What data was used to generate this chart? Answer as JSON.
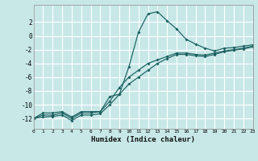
{
  "xlabel": "Humidex (Indice chaleur)",
  "xlim": [
    0,
    23
  ],
  "ylim": [
    -13.5,
    4.5
  ],
  "yticks": [
    2,
    0,
    -2,
    -4,
    -6,
    -8,
    -10,
    -12
  ],
  "xticks": [
    0,
    1,
    2,
    3,
    4,
    5,
    6,
    7,
    8,
    9,
    10,
    11,
    12,
    13,
    14,
    15,
    16,
    17,
    18,
    19,
    20,
    21,
    22,
    23
  ],
  "bg_color": "#c8e8e8",
  "line_color": "#1a6060",
  "grid_color": "#ffffff",
  "lines": [
    {
      "x": [
        0,
        1,
        2,
        3,
        4,
        5,
        6,
        7,
        8,
        9,
        10,
        11,
        12,
        13,
        14,
        15,
        16,
        17,
        18,
        19,
        20,
        21,
        22,
        23
      ],
      "y": [
        -12,
        -11.2,
        -11.2,
        -11,
        -11.8,
        -11,
        -11,
        -11,
        -8.8,
        -8.5,
        -4.5,
        0.5,
        3.2,
        3.5,
        2.2,
        1.0,
        -0.5,
        -1.2,
        -1.8,
        -2.2,
        -1.8,
        -1.7,
        -1.5,
        -1.3
      ]
    },
    {
      "x": [
        0,
        1,
        2,
        3,
        4,
        5,
        6,
        7,
        8,
        9,
        10,
        11,
        12,
        13,
        14,
        15,
        16,
        17,
        18,
        19,
        20,
        21,
        22,
        23
      ],
      "y": [
        -12,
        -11.5,
        -11.5,
        -11.2,
        -12,
        -11.2,
        -11.2,
        -11.0,
        -9.5,
        -7.5,
        -6.0,
        -5.0,
        -4.0,
        -3.5,
        -3.0,
        -2.5,
        -2.5,
        -2.7,
        -2.8,
        -2.5,
        -2.2,
        -2.0,
        -1.8,
        -1.5
      ]
    },
    {
      "x": [
        0,
        1,
        2,
        3,
        4,
        5,
        6,
        7,
        8,
        9,
        10,
        11,
        12,
        13,
        14,
        15,
        16,
        17,
        18,
        19,
        20,
        21,
        22,
        23
      ],
      "y": [
        -12,
        -11.8,
        -11.7,
        -11.5,
        -12.3,
        -11.5,
        -11.5,
        -11.3,
        -10.0,
        -8.5,
        -7.0,
        -6.0,
        -5.0,
        -4.0,
        -3.3,
        -2.7,
        -2.7,
        -2.9,
        -3.0,
        -2.7,
        -2.3,
        -2.1,
        -1.9,
        -1.6
      ]
    }
  ]
}
